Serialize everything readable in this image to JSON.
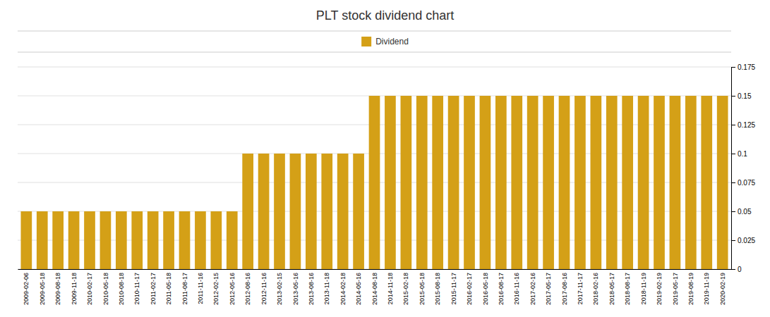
{
  "chart_data": {
    "type": "bar",
    "title": "PLT stock dividend chart",
    "categories": [
      "2009-02-06",
      "2009-05-18",
      "2009-08-18",
      "2009-11-18",
      "2010-02-17",
      "2010-05-18",
      "2010-08-18",
      "2010-11-17",
      "2011-02-17",
      "2011-05-18",
      "2011-08-17",
      "2011-11-16",
      "2012-02-15",
      "2012-05-16",
      "2012-08-16",
      "2012-11-16",
      "2013-02-15",
      "2013-05-16",
      "2013-08-16",
      "2013-11-18",
      "2014-02-18",
      "2014-05-16",
      "2014-08-18",
      "2014-11-18",
      "2015-02-18",
      "2015-05-18",
      "2015-08-18",
      "2015-11-17",
      "2016-02-17",
      "2016-05-18",
      "2016-08-17",
      "2016-11-16",
      "2017-02-16",
      "2017-05-17",
      "2017-08-16",
      "2017-11-17",
      "2018-02-16",
      "2018-05-17",
      "2018-08-17",
      "2018-11-19",
      "2019-02-19",
      "2019-05-17",
      "2019-08-19",
      "2019-11-19",
      "2020-02-19"
    ],
    "series": [
      {
        "name": "Dividend",
        "color": "#D4A017",
        "values": [
          0.05,
          0.05,
          0.05,
          0.05,
          0.05,
          0.05,
          0.05,
          0.05,
          0.05,
          0.05,
          0.05,
          0.05,
          0.05,
          0.05,
          0.1,
          0.1,
          0.1,
          0.1,
          0.1,
          0.1,
          0.1,
          0.1,
          0.15,
          0.15,
          0.15,
          0.15,
          0.15,
          0.15,
          0.15,
          0.15,
          0.15,
          0.15,
          0.15,
          0.15,
          0.15,
          0.15,
          0.15,
          0.15,
          0.15,
          0.15,
          0.15,
          0.15,
          0.15,
          0.15,
          0.15
        ]
      }
    ],
    "ylim": [
      0,
      0.175
    ],
    "yticks": [
      0,
      0.025,
      0.05,
      0.075,
      0.1,
      0.125,
      0.15,
      0.175
    ],
    "grid": true,
    "legend": "top"
  }
}
